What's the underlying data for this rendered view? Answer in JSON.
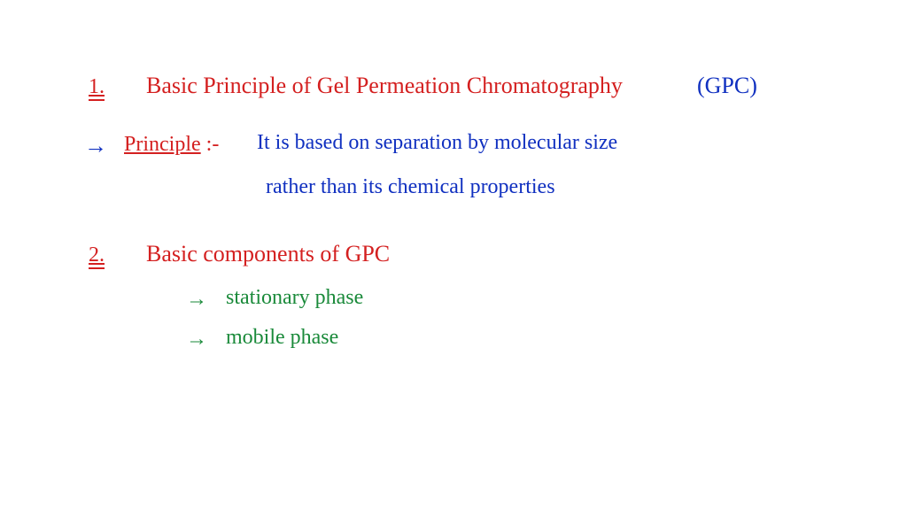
{
  "colors": {
    "red": "#d42020",
    "blue": "#1030c0",
    "green": "#1a8a3a",
    "background": "#ffffff"
  },
  "typography": {
    "family": "Comic Sans MS / handwritten cursive",
    "body_size_pt": 18,
    "title_size_pt": 19
  },
  "items": {
    "q1": {
      "number": "1.",
      "title": "Basic Principle of Gel Permeation Chromatography",
      "abbrev": "(GPC)",
      "principle_label": "Principle",
      "principle_sep": ":-",
      "principle_text_line1": "It is based on  separation by molecular size",
      "principle_text_line2": "rather than  its  chemical  properties"
    },
    "q2": {
      "number": "2.",
      "title": "Basic components of GPC",
      "components": {
        "c1": "stationary phase",
        "c2": "mobile phase"
      }
    },
    "arrows": {
      "a1": "→",
      "a2": "→",
      "a3": "→"
    }
  }
}
